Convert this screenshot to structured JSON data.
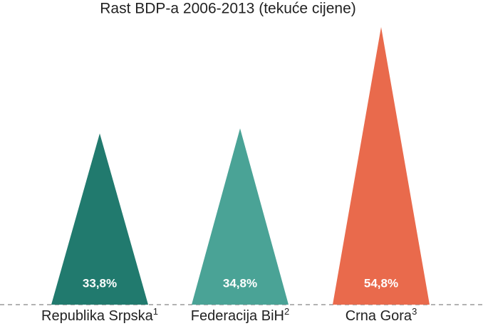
{
  "chart_data": {
    "type": "bar",
    "title": "Rast BDP-a 2006-2013 (tekuće cijene)",
    "categories": [
      "Republika Srpska",
      "Federacija BiH",
      "Crna Gora"
    ],
    "footnote_marks": [
      "1",
      "2",
      "3"
    ],
    "values": [
      33.8,
      34.8,
      54.8
    ],
    "value_labels": [
      "33,8%",
      "34,8%",
      "54,8%"
    ],
    "colors": [
      "#217a6e",
      "#4aa396",
      "#e96a4c"
    ]
  }
}
